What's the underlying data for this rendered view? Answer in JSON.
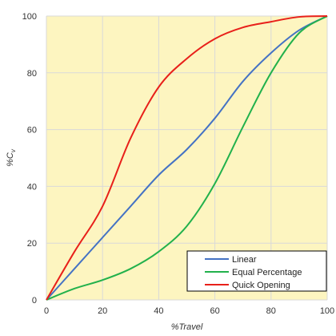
{
  "chart_data": {
    "type": "line",
    "title": "",
    "xlabel": "%Travel",
    "ylabel": "%C",
    "ylabel_subscript": "v",
    "xlim": [
      0,
      100
    ],
    "ylim": [
      0,
      100
    ],
    "xticks": [
      0,
      20,
      40,
      60,
      80,
      100
    ],
    "yticks": [
      0,
      20,
      40,
      60,
      80,
      100
    ],
    "grid": true,
    "plot_background": "#FDF5C0",
    "gridline_color": "#D9D9D9",
    "legend_position": "bottom-right",
    "series": [
      {
        "name": "Linear",
        "color": "#4472C4",
        "x": [
          0,
          10,
          20,
          30,
          40,
          50,
          60,
          70,
          80,
          90,
          100
        ],
        "y": [
          0,
          11,
          22,
          33,
          44,
          53,
          64,
          77,
          87,
          95,
          100
        ]
      },
      {
        "name": "Equal Percentage",
        "color": "#22B14C",
        "x": [
          0,
          10,
          20,
          30,
          40,
          50,
          60,
          70,
          80,
          90,
          100
        ],
        "y": [
          0,
          4,
          7,
          11,
          17,
          26,
          41,
          61,
          80,
          94,
          100
        ]
      },
      {
        "name": "Quick Opening",
        "color": "#E8201A",
        "x": [
          0,
          10,
          20,
          30,
          40,
          50,
          60,
          70,
          80,
          90,
          100
        ],
        "y": [
          0,
          17,
          33,
          57,
          75,
          85,
          92,
          96,
          98,
          99.7,
          100
        ]
      }
    ]
  }
}
